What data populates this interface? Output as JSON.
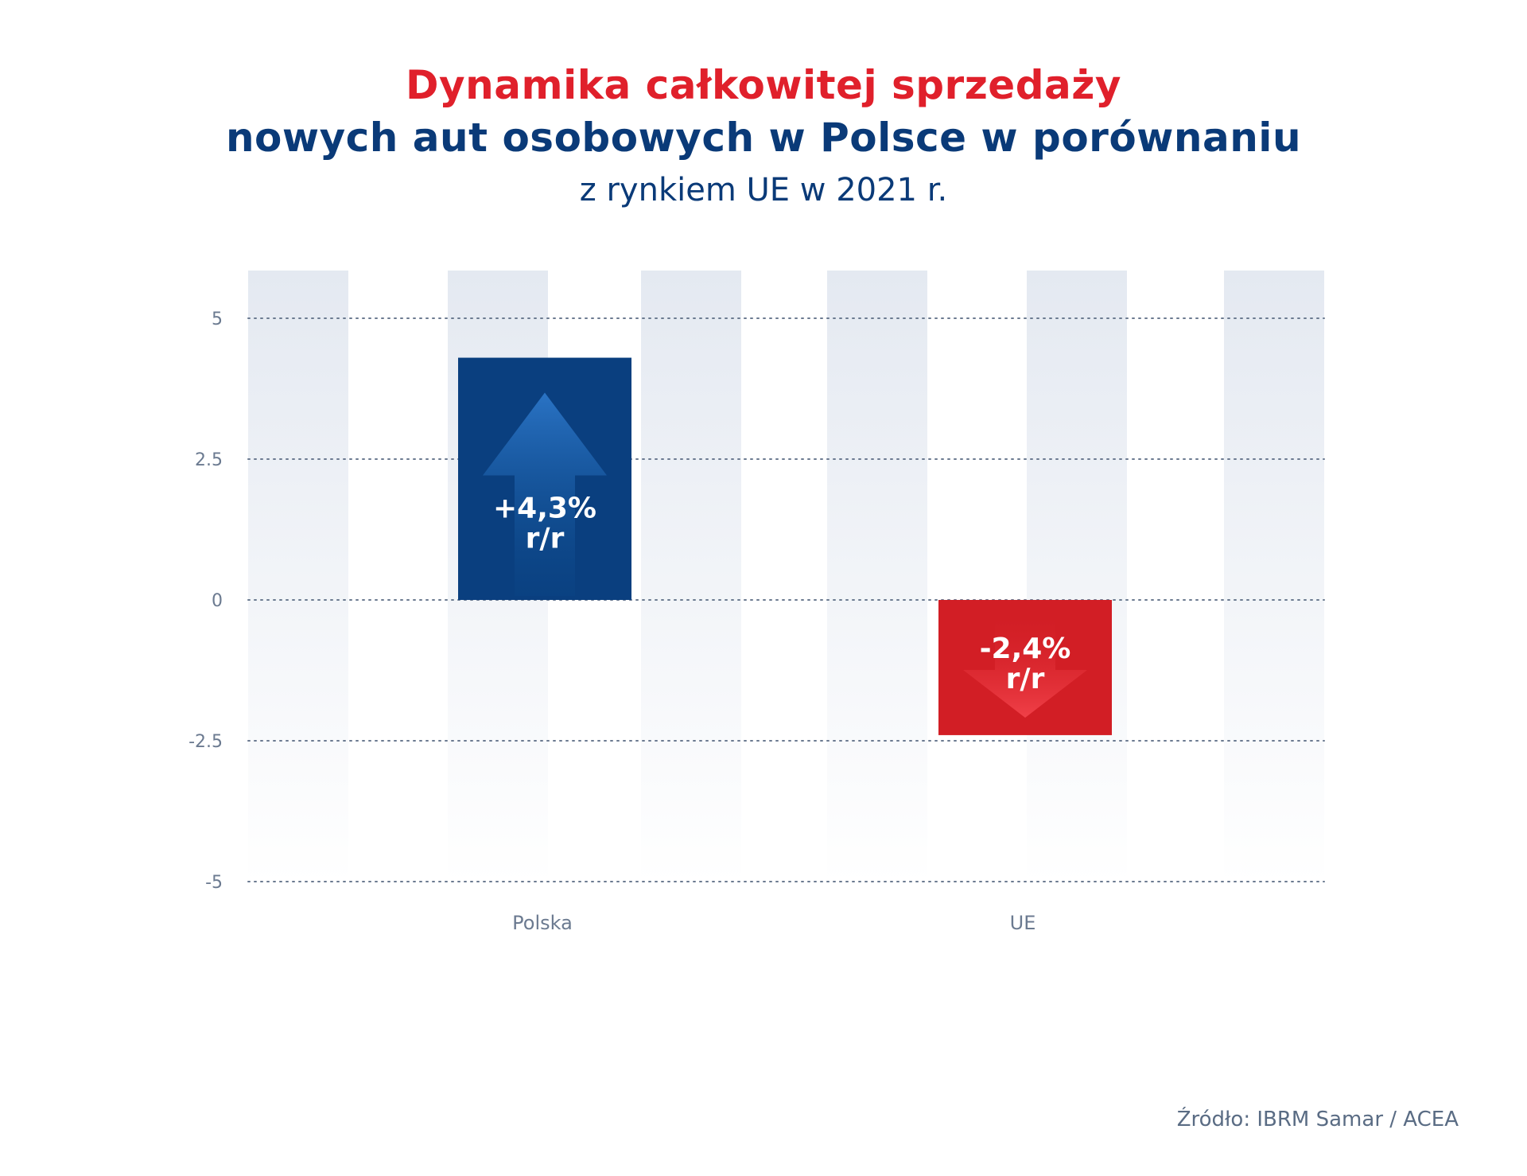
{
  "title_line1": "Dynamika całkowitej sprzedaży",
  "title_line2": "nowych aut osobowych w Polsce w porównaniu",
  "subtitle": "z rynkiem UE w 2021 r.",
  "source": "Źródło: IBRM Samar / ACEA",
  "colors": {
    "positive": "#0a3f7f",
    "negative": "#d21e25",
    "title_red": "#e0202b",
    "title_blue": "#0a3a78"
  },
  "chart_data": {
    "type": "bar",
    "categories": [
      "Polska",
      "UE"
    ],
    "values": [
      4.3,
      -2.4
    ],
    "value_labels": [
      "+4,3%",
      "-2,4%"
    ],
    "value_unit": "r/r",
    "y_ticks": [
      "5",
      "2.5",
      "0",
      "-2.5",
      "-5"
    ],
    "ylim": [
      -5,
      5
    ],
    "grid": true,
    "bar_icons": [
      "arrow-up-icon",
      "arrow-down-icon"
    ]
  }
}
